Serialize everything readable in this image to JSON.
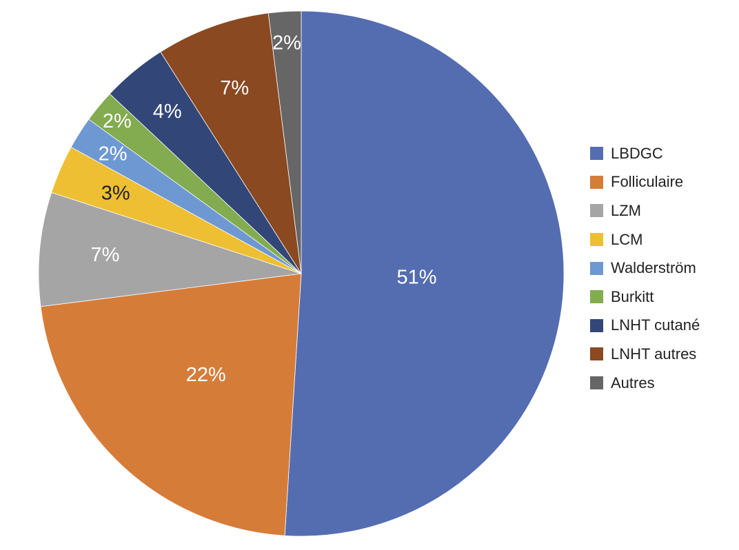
{
  "chart_data": {
    "type": "pie",
    "title": "",
    "categories": [
      "LBDGC",
      "Folliculaire",
      "LZM",
      "LCM",
      "Walderström",
      "Burkitt",
      "LNHT cutané",
      "LNHT autres",
      "Autres"
    ],
    "values": [
      51,
      22,
      7,
      3,
      2,
      2,
      4,
      7,
      2
    ],
    "labels": [
      "51%",
      "22%",
      "7%",
      "3%",
      "2%",
      "2%",
      "4%",
      "7%",
      "2%"
    ],
    "colors": [
      "#546db1",
      "#d67c39",
      "#a5a5a5",
      "#eebf33",
      "#6e98d2",
      "#83ab4f",
      "#324678",
      "#8a4921",
      "#666666"
    ],
    "label_colors": [
      "#ffffff",
      "#ffffff",
      "#ffffff",
      "#222222",
      "#ffffff",
      "#ffffff",
      "#ffffff",
      "#ffffff",
      "#ffffff"
    ],
    "start": "top",
    "direction": "clockwise",
    "legend_position": "right"
  }
}
